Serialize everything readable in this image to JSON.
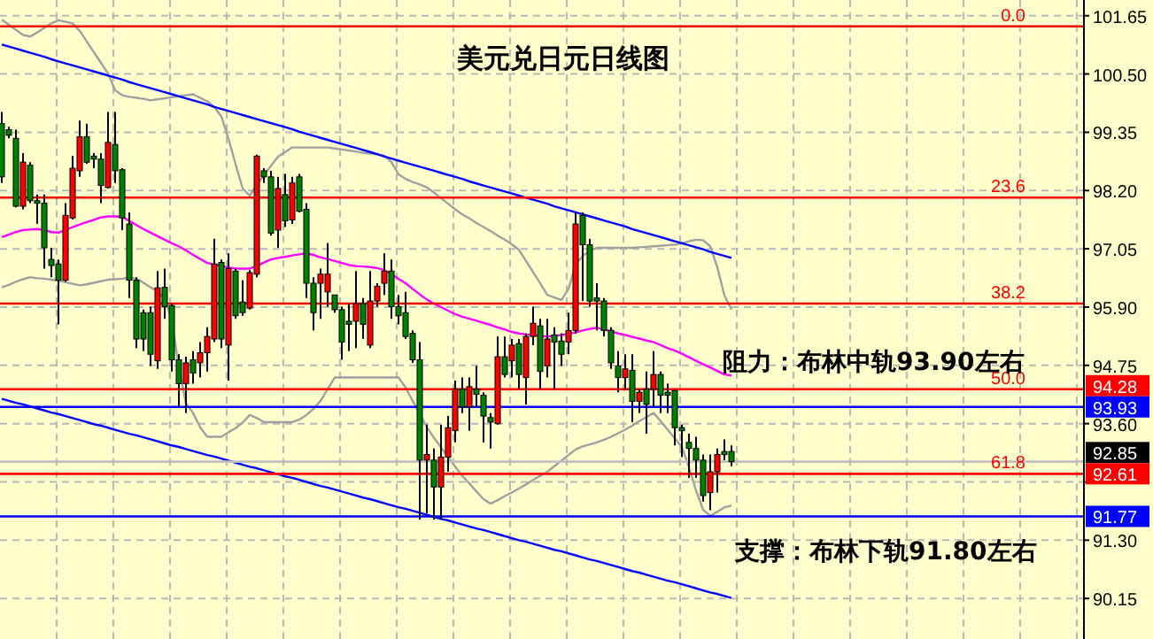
{
  "chart_data": {
    "type": "candlestick",
    "title": "美元兑日元日线图",
    "annotations": [
      "阻力：布林中轨93.90左右",
      "支撑：布林下轨91.80左右",
      {
        "text": "0.0",
        "y": 101.44
      },
      {
        "text": "23.6",
        "y": 98.06
      },
      {
        "text": "38.2",
        "y": 95.97
      },
      {
        "text": "50.0",
        "y": 94.28
      },
      {
        "text": "61.8",
        "y": 92.61
      }
    ],
    "categories": [
      null,
      null,
      null,
      null,
      null,
      null,
      null,
      null,
      null,
      null,
      null,
      null,
      null,
      null,
      null,
      null,
      null,
      null,
      null,
      null,
      null,
      null,
      null,
      null,
      null,
      null,
      null,
      null,
      null,
      null,
      null,
      null,
      null,
      null,
      null,
      null,
      null,
      null,
      null,
      null,
      null,
      null,
      null,
      null,
      null,
      null,
      null,
      null,
      null,
      null,
      null,
      null,
      null,
      null,
      null,
      null,
      null,
      null,
      null,
      null,
      null,
      null,
      null,
      null,
      null,
      null,
      null,
      null,
      null,
      null,
      null,
      null,
      null,
      null,
      null,
      null,
      null,
      null,
      null,
      null,
      null,
      null,
      null,
      null,
      null,
      null,
      null,
      null,
      null,
      null,
      null,
      null,
      null,
      null,
      null,
      null,
      null,
      null,
      null,
      null,
      null,
      null,
      null,
      null
    ],
    "ohlc": [
      [
        99.52,
        99.75,
        98.35,
        98.47
      ],
      [
        99.4,
        99.46,
        99.23,
        99.29
      ],
      [
        99.23,
        99.4,
        97.87,
        97.89
      ],
      [
        97.89,
        98.94,
        97.83,
        98.76
      ],
      [
        98.7,
        98.76,
        97.95,
        98.0
      ],
      [
        98.0,
        98.12,
        97.54,
        97.95
      ],
      [
        97.95,
        98.12,
        96.66,
        97.07
      ],
      [
        96.84,
        97.07,
        96.49,
        96.72
      ],
      [
        96.75,
        96.84,
        95.56,
        96.43
      ],
      [
        96.43,
        97.95,
        96.4,
        97.71
      ],
      [
        97.66,
        98.88,
        97.63,
        98.64
      ],
      [
        98.59,
        99.58,
        98.47,
        99.26
      ],
      [
        99.26,
        99.52,
        98.73,
        98.76
      ],
      [
        98.88,
        98.94,
        98.64,
        98.82
      ],
      [
        98.82,
        98.94,
        97.95,
        98.3
      ],
      [
        98.26,
        99.75,
        98.24,
        99.15
      ],
      [
        99.11,
        99.75,
        98.35,
        98.59
      ],
      [
        98.61,
        98.64,
        97.42,
        97.66
      ],
      [
        97.54,
        97.77,
        96.08,
        96.43
      ],
      [
        96.43,
        96.49,
        95.09,
        95.27
      ],
      [
        95.79,
        95.85,
        95.03,
        95.27
      ],
      [
        95.79,
        95.91,
        94.74,
        94.97
      ],
      [
        94.84,
        96.61,
        94.68,
        96.28
      ],
      [
        96.29,
        96.66,
        95.67,
        95.91
      ],
      [
        95.93,
        95.97,
        94.63,
        94.86
      ],
      [
        94.86,
        94.97,
        93.93,
        94.39
      ],
      [
        94.39,
        94.92,
        93.81,
        94.8
      ],
      [
        94.86,
        95.03,
        94.39,
        94.6
      ],
      [
        94.8,
        95.21,
        94.51,
        95.0
      ],
      [
        95.0,
        95.5,
        94.63,
        95.32
      ],
      [
        95.27,
        97.25,
        95.21,
        96.75
      ],
      [
        96.78,
        96.84,
        95.09,
        95.27
      ],
      [
        95.15,
        96.96,
        94.45,
        96.66
      ],
      [
        96.61,
        96.66,
        95.67,
        95.73
      ],
      [
        96.0,
        96.43,
        95.73,
        95.79
      ],
      [
        95.88,
        96.63,
        95.85,
        96.58
      ],
      [
        96.55,
        98.91,
        96.49,
        98.88
      ],
      [
        98.59,
        98.64,
        98.35,
        98.47
      ],
      [
        98.47,
        98.59,
        97.31,
        97.36
      ],
      [
        97.42,
        98.47,
        97.07,
        98.24
      ],
      [
        98.12,
        98.53,
        97.48,
        97.6
      ],
      [
        97.62,
        98.47,
        97.54,
        98.35
      ],
      [
        98.47,
        98.53,
        97.77,
        97.79
      ],
      [
        97.83,
        97.95,
        96.08,
        96.37
      ],
      [
        96.37,
        96.49,
        95.44,
        95.79
      ],
      [
        96.37,
        96.66,
        95.67,
        96.55
      ],
      [
        96.2,
        97.16,
        95.91,
        96.55
      ],
      [
        96.14,
        96.14,
        95.79,
        95.85
      ],
      [
        95.85,
        95.91,
        94.86,
        95.21
      ],
      [
        95.62,
        95.97,
        95.03,
        95.56
      ],
      [
        95.62,
        96.61,
        95.09,
        95.97
      ],
      [
        95.97,
        96.08,
        95.27,
        95.56
      ],
      [
        95.15,
        96.61,
        95.09,
        96.02
      ],
      [
        96.02,
        96.37,
        95.91,
        96.31
      ],
      [
        96.37,
        96.96,
        96.14,
        96.61
      ],
      [
        96.61,
        96.84,
        95.67,
        95.91
      ],
      [
        95.91,
        96.14,
        95.56,
        95.73
      ],
      [
        95.79,
        96.2,
        95.27,
        95.32
      ],
      [
        95.38,
        95.44,
        94.8,
        94.86
      ],
      [
        94.86,
        95.21,
        91.71,
        92.88
      ],
      [
        92.88,
        93.58,
        91.83,
        92.99
      ],
      [
        92.88,
        93.11,
        91.71,
        92.35
      ],
      [
        92.35,
        93.58,
        91.71,
        92.94
      ],
      [
        92.94,
        93.75,
        92.65,
        93.52
      ],
      [
        93.46,
        94.45,
        93.23,
        94.28
      ],
      [
        94.28,
        94.51,
        93.81,
        93.93
      ],
      [
        93.93,
        94.51,
        93.46,
        94.33
      ],
      [
        94.28,
        94.74,
        93.93,
        94.18
      ],
      [
        94.16,
        94.22,
        93.23,
        93.75
      ],
      [
        93.72,
        93.81,
        93.11,
        93.63
      ],
      [
        93.6,
        95.32,
        93.58,
        94.92
      ],
      [
        94.92,
        95.32,
        94.51,
        94.57
      ],
      [
        94.84,
        95.27,
        94.51,
        95.15
      ],
      [
        95.18,
        95.27,
        94.28,
        94.57
      ],
      [
        94.51,
        95.38,
        93.98,
        95.32
      ],
      [
        95.32,
        95.91,
        95.15,
        95.58
      ],
      [
        95.53,
        95.67,
        94.28,
        94.63
      ],
      [
        94.74,
        95.67,
        94.51,
        95.27
      ],
      [
        95.35,
        95.5,
        94.28,
        95.21
      ],
      [
        95.23,
        95.38,
        94.74,
        94.97
      ],
      [
        95.21,
        95.79,
        94.97,
        95.44
      ],
      [
        95.44,
        97.77,
        95.38,
        97.54
      ],
      [
        97.71,
        97.77,
        96.02,
        97.13
      ],
      [
        97.13,
        97.25,
        95.91,
        96.02
      ],
      [
        96.08,
        96.37,
        95.44,
        96.02
      ],
      [
        96.02,
        96.08,
        95.32,
        95.44
      ],
      [
        95.44,
        95.5,
        94.68,
        94.8
      ],
      [
        94.74,
        95.03,
        94.22,
        94.51
      ],
      [
        94.51,
        94.97,
        94.28,
        94.68
      ],
      [
        94.65,
        94.97,
        93.63,
        94.04
      ],
      [
        94.04,
        94.28,
        93.81,
        94.22
      ],
      [
        94.28,
        94.63,
        93.4,
        93.98
      ],
      [
        94.28,
        95.03,
        93.93,
        94.57
      ],
      [
        94.57,
        94.63,
        93.81,
        94.16
      ],
      [
        94.22,
        94.39,
        93.81,
        94.16
      ],
      [
        94.25,
        94.28,
        93.17,
        93.52
      ],
      [
        93.52,
        93.58,
        92.94,
        93.46
      ],
      [
        93.23,
        93.4,
        92.53,
        93.11
      ],
      [
        93.11,
        93.34,
        92.53,
        92.88
      ],
      [
        92.88,
        92.99,
        92.06,
        92.18
      ],
      [
        92.24,
        92.99,
        91.89,
        92.65
      ],
      [
        92.65,
        93.11,
        92.24,
        92.99
      ],
      [
        93.05,
        93.29,
        92.88,
        92.99
      ],
      [
        93.05,
        93.17,
        92.76,
        92.85
      ]
    ],
    "colors": [
      "#008000",
      "#008000",
      "#008000",
      "#ff0000",
      "#008000",
      "#008000",
      "#008000",
      "#008000",
      "#008000",
      "#ff0000",
      "#ff0000",
      "#ff0000",
      "#008000",
      "#008000",
      "#008000",
      "#ff0000",
      "#008000",
      "#008000",
      "#008000",
      "#008000",
      "#008000",
      "#008000",
      "#ff0000",
      "#008000",
      "#008000",
      "#008000",
      "#ff0000",
      "#008000",
      "#ff0000",
      "#ff0000",
      "#ff0000",
      "#008000",
      "#ff0000",
      "#008000",
      "#008000",
      "#ff0000",
      "#ff0000",
      "#008000",
      "#008000",
      "#ff0000",
      "#008000",
      "#ff0000",
      "#008000",
      "#008000",
      "#008000",
      "#ff0000",
      "#ff0000",
      "#008000",
      "#008000",
      "#008000",
      "#ff0000",
      "#008000",
      "#ff0000",
      "#ff0000",
      "#ff0000",
      "#008000",
      "#008000",
      "#008000",
      "#008000",
      "#008000",
      "#ff0000",
      "#008000",
      "#ff0000",
      "#ff0000",
      "#ff0000",
      "#008000",
      "#ff0000",
      "#008000",
      "#008000",
      "#008000",
      "#ff0000",
      "#008000",
      "#ff0000",
      "#008000",
      "#ff0000",
      "#ff0000",
      "#008000",
      "#ff0000",
      "#008000",
      "#008000",
      "#ff0000",
      "#ff0000",
      "#008000",
      "#008000",
      "#008000",
      "#008000",
      "#008000",
      "#008000",
      "#ff0000",
      "#008000",
      "#ff0000",
      "#008000",
      "#ff0000",
      "#008000",
      "#008000",
      "#008000",
      "#008000",
      "#008000",
      "#008000",
      "#008000",
      "#ff0000",
      "#ff0000",
      "#008000",
      "#008000"
    ],
    "series": [
      {
        "type": "line",
        "color": "#a0a0a0",
        "values": [
          101.57,
          101.47,
          101.37,
          101.27,
          101.24,
          101.32,
          101.41,
          101.5,
          101.56,
          101.53,
          101.5,
          101.35,
          101.14,
          100.93,
          100.72,
          100.51,
          100.18,
          100.08,
          100.05,
          100.03,
          100.01,
          99.98,
          100,
          100.02,
          100.04,
          100.06,
          100.08,
          100.1,
          100.03,
          99.96,
          99.85,
          99.66,
          99.22,
          98.72,
          98.24,
          98.1,
          98.31,
          98.5,
          98.69,
          98.87,
          98.96,
          99.05,
          99.05,
          99.05,
          99.05,
          99.05,
          99.05,
          99.03,
          99.01,
          98.99,
          98.97,
          98.94,
          98.93,
          98.91,
          98.89,
          98.76,
          98.52,
          98.43,
          98.37,
          98.32,
          98.26,
          98.16,
          98.05,
          97.94,
          97.83,
          97.73,
          97.65,
          97.56,
          97.48,
          97.4,
          97.31,
          97.23,
          97.14,
          97.03,
          96.81,
          96.59,
          96.37,
          96.14,
          96.09,
          96.04,
          96.26,
          96.74,
          96.91,
          97.01,
          97.07,
          97.07,
          97.07,
          97.07,
          97.07,
          97.07,
          97.08,
          97.09,
          97.1,
          97.11,
          97.12,
          97.13,
          97.16,
          97.2,
          97.23,
          97.22,
          97.1,
          96.69,
          96.13,
          95.85
        ]
      },
      {
        "type": "line",
        "color": "#a0a0a0",
        "values": [
          96.29,
          96.34,
          96.4,
          96.45,
          96.49,
          96.47,
          96.46,
          96.44,
          96.42,
          96.39,
          96.36,
          96.33,
          96.35,
          96.38,
          96.41,
          96.44,
          96.45,
          96.46,
          96.48,
          96.46,
          96.38,
          96.29,
          96.21,
          96.06,
          95.65,
          94.7,
          94,
          93.81,
          93.53,
          93.34,
          93.34,
          93.34,
          93.43,
          93.51,
          93.62,
          93.77,
          93.71,
          93.63,
          93.63,
          93.63,
          93.63,
          93.63,
          93.68,
          93.77,
          93.89,
          94.05,
          94.28,
          94.51,
          94.51,
          94.51,
          94.51,
          94.51,
          94.51,
          94.51,
          94.51,
          94.51,
          94.51,
          94.31,
          94.05,
          93.79,
          93.53,
          93.32,
          93.13,
          92.94,
          92.75,
          92.57,
          92.42,
          92.26,
          92.11,
          92.02,
          92.09,
          92.17,
          92.24,
          92.32,
          92.4,
          92.49,
          92.57,
          92.65,
          92.76,
          92.87,
          92.98,
          93.09,
          93.15,
          93.19,
          93.23,
          93.28,
          93.34,
          93.41,
          93.48,
          93.56,
          93.65,
          93.73,
          93.81,
          93.65,
          93.48,
          93.31,
          93.14,
          92.74,
          92.28,
          91.9,
          91.78,
          91.86,
          91.95,
          91.98
        ]
      },
      {
        "type": "line",
        "color": "#ff00ff",
        "values": [
          97.28,
          97.33,
          97.38,
          97.42,
          97.43,
          97.44,
          97.42,
          97.38,
          97.37,
          97.42,
          97.48,
          97.53,
          97.58,
          97.62,
          97.67,
          97.69,
          97.69,
          97.68,
          97.6,
          97.52,
          97.44,
          97.37,
          97.3,
          97.23,
          97.16,
          97.1,
          97.02,
          96.93,
          96.85,
          96.77,
          96.74,
          96.71,
          96.68,
          96.66,
          96.66,
          96.66,
          96.71,
          96.78,
          96.84,
          96.87,
          96.89,
          96.92,
          96.94,
          96.96,
          96.93,
          96.88,
          96.85,
          96.81,
          96.77,
          96.73,
          96.71,
          96.7,
          96.69,
          96.67,
          96.63,
          96.55,
          96.46,
          96.37,
          96.26,
          96.15,
          96.05,
          95.97,
          95.9,
          95.83,
          95.76,
          95.71,
          95.67,
          95.63,
          95.59,
          95.55,
          95.5,
          95.46,
          95.41,
          95.38,
          95.36,
          95.35,
          95.33,
          95.32,
          95.33,
          95.35,
          95.37,
          95.4,
          95.44,
          95.47,
          95.49,
          95.46,
          95.42,
          95.38,
          95.35,
          95.31,
          95.28,
          95.24,
          95.21,
          95.15,
          95.09,
          95.04,
          94.98,
          94.91,
          94.84,
          94.77,
          94.71,
          94.64,
          94.57,
          94.55
        ]
      },
      {
        "type": "line",
        "color": "#0000ff",
        "values": [
          101.08,
          101.04,
          101,
          100.96,
          100.92,
          100.88,
          100.84,
          100.79,
          100.75,
          100.71,
          100.67,
          100.63,
          100.59,
          100.55,
          100.51,
          100.47,
          100.43,
          100.39,
          100.34,
          100.3,
          100.26,
          100.22,
          100.18,
          100.14,
          100.1,
          100.06,
          100.02,
          99.98,
          99.94,
          99.9,
          99.85,
          99.81,
          99.77,
          99.73,
          99.69,
          99.65,
          99.61,
          99.57,
          99.53,
          99.49,
          99.45,
          99.41,
          99.36,
          99.32,
          99.28,
          99.24,
          99.2,
          99.16,
          99.12,
          99.08,
          99.04,
          99,
          98.96,
          98.92,
          98.87,
          98.83,
          98.79,
          98.75,
          98.71,
          98.67,
          98.63,
          98.59,
          98.55,
          98.51,
          98.47,
          98.43,
          98.38,
          98.34,
          98.3,
          98.26,
          98.22,
          98.18,
          98.14,
          98.1,
          98.06,
          98.02,
          97.98,
          97.94,
          97.89,
          97.85,
          97.81,
          97.77,
          97.73,
          97.69,
          97.65,
          97.61,
          97.57,
          97.53,
          97.49,
          97.44,
          97.4,
          97.36,
          97.32,
          97.28,
          97.24,
          97.2,
          97.16,
          97.12,
          97.08,
          97.04,
          96.99,
          96.95,
          96.91,
          96.87
        ]
      },
      {
        "type": "line",
        "color": "#0000ff",
        "values": [
          94.09,
          94.05,
          94.01,
          93.98,
          93.94,
          93.9,
          93.86,
          93.82,
          93.79,
          93.75,
          93.71,
          93.67,
          93.63,
          93.59,
          93.56,
          93.52,
          93.48,
          93.44,
          93.4,
          93.37,
          93.33,
          93.29,
          93.25,
          93.21,
          93.17,
          93.14,
          93.1,
          93.06,
          93.02,
          92.98,
          92.95,
          92.91,
          92.87,
          92.83,
          92.79,
          92.75,
          92.72,
          92.68,
          92.64,
          92.6,
          92.56,
          92.53,
          92.49,
          92.45,
          92.41,
          92.37,
          92.34,
          92.3,
          92.26,
          92.22,
          92.18,
          92.14,
          92.11,
          92.07,
          92.03,
          91.99,
          91.95,
          91.92,
          91.88,
          91.84,
          91.8,
          91.76,
          91.72,
          91.69,
          91.65,
          91.61,
          91.57,
          91.53,
          91.5,
          91.46,
          91.42,
          91.38,
          91.34,
          91.3,
          91.27,
          91.23,
          91.19,
          91.15,
          91.11,
          91.08,
          91.04,
          91,
          90.96,
          90.92,
          90.89,
          90.85,
          90.81,
          90.77,
          90.73,
          90.69,
          90.66,
          90.62,
          90.58,
          90.54,
          90.5,
          90.47,
          90.43,
          90.39,
          90.35,
          90.31,
          90.27,
          90.24,
          90.2,
          90.16
        ]
      }
    ],
    "ref_lines": [
      {
        "axis": "y",
        "value": 101.44,
        "color": "#ff0000"
      },
      {
        "axis": "y",
        "value": 98.06,
        "color": "#ff0000"
      },
      {
        "axis": "y",
        "value": 95.97,
        "color": "#ff0000"
      },
      {
        "axis": "y",
        "value": 94.28,
        "label": "94.28",
        "color": "#ff0000"
      },
      {
        "axis": "y",
        "value": 93.93,
        "label": "93.93",
        "color": "#0000ff"
      },
      {
        "axis": "y",
        "value": 92.85,
        "label": "92.85",
        "color": "#c0c0c0"
      },
      {
        "axis": "y",
        "value": 92.61,
        "label": "92.61",
        "color": "#ff0000"
      },
      {
        "axis": "y",
        "value": 91.77,
        "label": "91.77",
        "color": "#0000ff"
      }
    ],
    "ylim": [
      89.35,
      101.96
    ],
    "yticks": [
      {
        "value": 101.65,
        "label": "101.65"
      },
      {
        "value": 100.5,
        "label": "100.50"
      },
      {
        "value": 99.35,
        "label": "99.35"
      },
      {
        "value": 98.2,
        "label": "98.20"
      },
      {
        "value": 97.05,
        "label": "97.05"
      },
      {
        "value": 95.9,
        "label": "95.90"
      },
      {
        "value": 94.75,
        "label": "94.75"
      },
      {
        "value": 93.6,
        "label": "93.60"
      },
      {
        "value": 92.45,
        "label": null
      },
      {
        "value": 91.3,
        "label": "91.30"
      },
      {
        "value": 90.15,
        "label": "90.15"
      }
    ],
    "grid": true,
    "tick_labels": "y"
  }
}
